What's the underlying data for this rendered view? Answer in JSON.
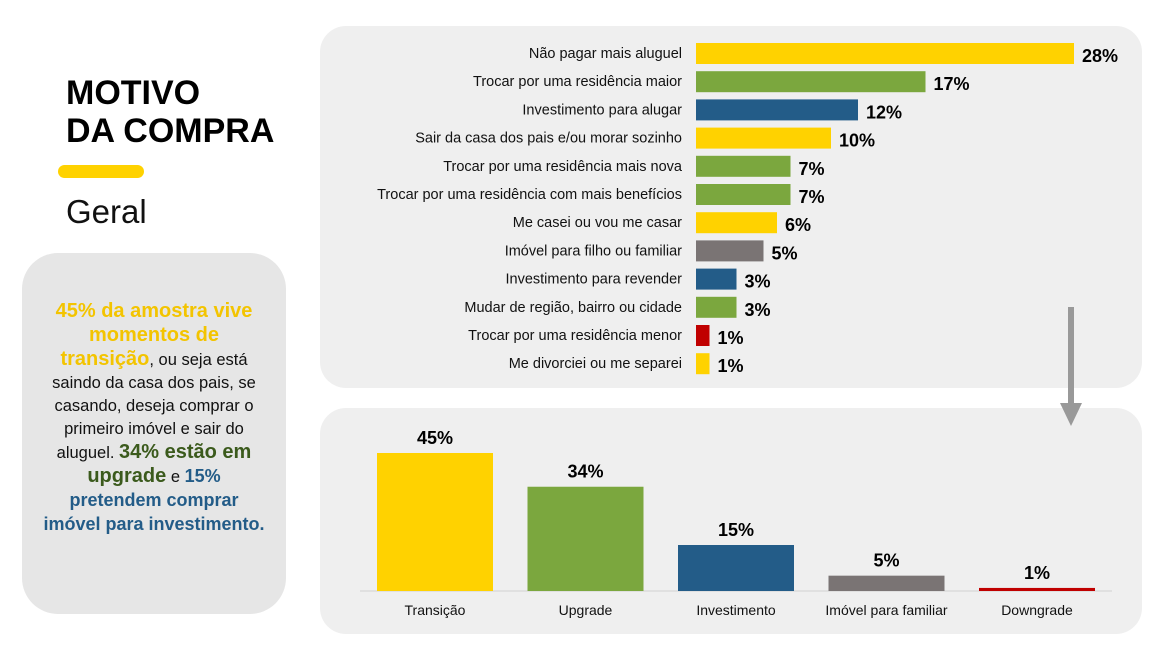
{
  "header": {
    "title_line1": "MOTIVO",
    "title_line2": "DA COMPRA",
    "subtitle": "Geral"
  },
  "note": {
    "p1": "45% da amostra vive momentos de transição",
    "p2": ", ou seja está saindo da casa dos pais, se casando, deseja comprar o primeiro imóvel e sair do aluguel. ",
    "p3": "34% estão em upgrade",
    "p4": " e ",
    "p5": "15% pretendem comprar imóvel para investimento."
  },
  "colors": {
    "yellow": "#FFD200",
    "green": "#7BA73E",
    "blue": "#235C88",
    "gray": "#7A7474",
    "red": "#C00000"
  },
  "chart_data": [
    {
      "type": "bar",
      "orientation": "horizontal",
      "categories": [
        "Não pagar mais aluguel",
        "Trocar por uma residência maior",
        "Investimento para alugar",
        "Sair da casa dos pais e/ou morar sozinho",
        "Trocar por uma residência mais nova",
        "Trocar por uma residência com mais benefícios",
        "Me casei ou vou me casar",
        "Imóvel para filho ou familiar",
        "Investimento para revender",
        "Mudar de região, bairro ou cidade",
        "Trocar por uma residência menor",
        "Me divorciei ou me separei"
      ],
      "values": [
        28,
        17,
        12,
        10,
        7,
        7,
        6,
        5,
        3,
        3,
        1,
        1
      ],
      "value_labels": [
        "28%",
        "17%",
        "12%",
        "10%",
        "7%",
        "7%",
        "6%",
        "5%",
        "3%",
        "3%",
        "1%",
        "1%"
      ],
      "colors": [
        "#FFD200",
        "#7BA73E",
        "#235C88",
        "#FFD200",
        "#7BA73E",
        "#7BA73E",
        "#FFD200",
        "#7A7474",
        "#235C88",
        "#7BA73E",
        "#C00000",
        "#FFD200"
      ],
      "xlim": [
        0,
        28
      ]
    },
    {
      "type": "bar",
      "orientation": "vertical",
      "categories": [
        "Transição",
        "Upgrade",
        "Investimento",
        "Imóvel para familiar",
        "Downgrade"
      ],
      "values": [
        45,
        34,
        15,
        5,
        1
      ],
      "value_labels": [
        "45%",
        "34%",
        "15%",
        "5%",
        "1%"
      ],
      "colors": [
        "#FFD200",
        "#7BA73E",
        "#235C88",
        "#7A7474",
        "#C00000"
      ],
      "ylim": [
        0,
        45
      ]
    }
  ]
}
